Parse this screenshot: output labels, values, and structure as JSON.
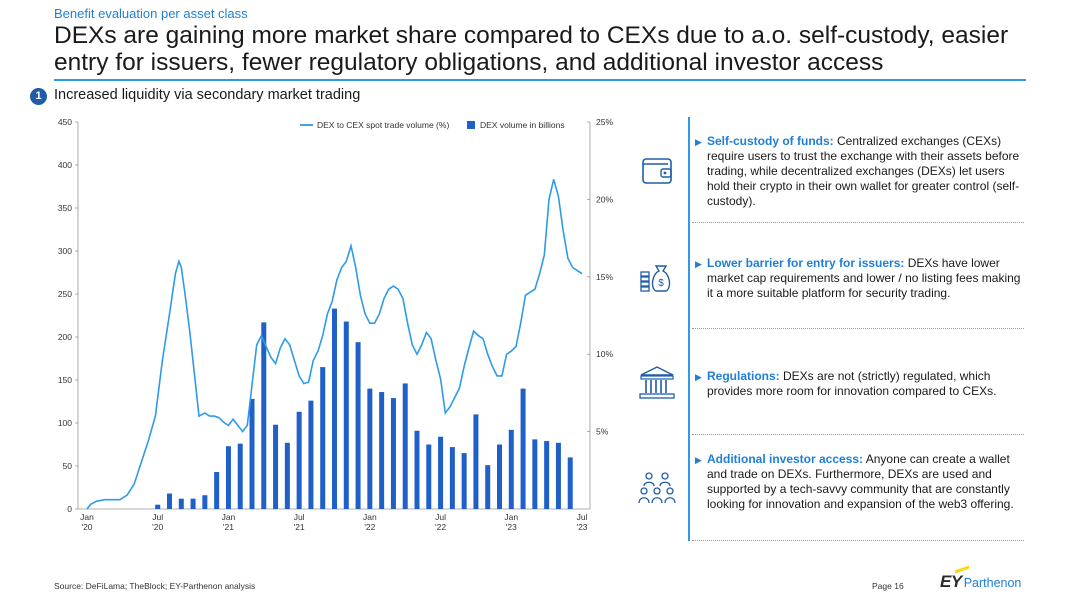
{
  "header": {
    "kicker": "Benefit evaluation per asset class",
    "title": "DEXs are gaining more market share compared to CEXs due to a.o. self-custody, easier entry for issuers, fewer regulatory obligations, and additional investor access",
    "section_number": "1",
    "section_title": "Increased liquidity via secondary market trading"
  },
  "chart_data": {
    "type": "bar",
    "categories": [
      "Jan '20",
      "Feb '20",
      "Mar '20",
      "Apr '20",
      "May '20",
      "Jun '20",
      "Jul '20",
      "Aug '20",
      "Sep '20",
      "Oct '20",
      "Nov '20",
      "Dec '20",
      "Jan '21",
      "Feb '21",
      "Mar '21",
      "Apr '21",
      "May '21",
      "Jun '21",
      "Jul '21",
      "Aug '21",
      "Sep '21",
      "Oct '21",
      "Nov '21",
      "Dec '21",
      "Jan '22",
      "Feb '22",
      "Mar '22",
      "Apr '22",
      "May '22",
      "Jun '22",
      "Jul '22",
      "Aug '22",
      "Sep '22",
      "Oct '22",
      "Nov '22",
      "Dec '22",
      "Jan '23",
      "Feb '23",
      "Mar '23",
      "Apr '23",
      "May '23",
      "Jun '23",
      "Jul '23"
    ],
    "x_tick_labels": [
      {
        "index": 0,
        "line1": "Jan",
        "line2": "'20"
      },
      {
        "index": 6,
        "line1": "Jul",
        "line2": "'20"
      },
      {
        "index": 12,
        "line1": "Jan",
        "line2": "'21"
      },
      {
        "index": 18,
        "line1": "Jul",
        "line2": "'21"
      },
      {
        "index": 24,
        "line1": "Jan",
        "line2": "'22"
      },
      {
        "index": 30,
        "line1": "Jul",
        "line2": "'22"
      },
      {
        "index": 36,
        "line1": "Jan",
        "line2": "'23"
      },
      {
        "index": 42,
        "line1": "Jul",
        "line2": "'23"
      }
    ],
    "series": [
      {
        "name": "DEX volume in billions",
        "type": "bar",
        "axis": "left",
        "color": "#1f5fc8",
        "values": [
          null,
          null,
          null,
          null,
          null,
          null,
          5,
          18,
          12,
          12,
          16,
          43,
          73,
          76,
          128,
          217,
          98,
          77,
          113,
          126,
          165,
          233,
          218,
          194,
          140,
          136,
          129,
          146,
          91,
          75,
          84,
          72,
          65,
          110,
          51,
          75,
          92,
          140,
          81,
          79,
          77,
          60,
          null
        ]
      },
      {
        "name": "DEX to CEX spot trade volume (%)",
        "type": "line",
        "axis": "right",
        "color": "#2d9be8",
        "x": [
          0,
          0.3,
          0.8,
          1.5,
          2.2,
          2.8,
          3.4,
          4.0,
          4.6,
          5.2,
          5.8,
          6.4,
          7.0,
          7.5,
          7.8,
          8.0,
          8.3,
          8.7,
          9.1,
          9.5,
          10.0,
          10.4,
          10.8,
          11.2,
          11.6,
          12.0,
          12.4,
          12.8,
          13.2,
          13.6,
          14.0,
          14.4,
          14.8,
          15.2,
          15.6,
          16.0,
          16.4,
          16.8,
          17.2,
          17.6,
          18.0,
          18.4,
          18.8,
          19.2,
          19.6,
          20.0,
          20.4,
          20.8,
          21.2,
          21.6,
          22.0,
          22.4,
          22.8,
          23.2,
          23.6,
          24.0,
          24.4,
          24.8,
          25.2,
          25.6,
          26.0,
          26.4,
          26.8,
          27.2,
          27.6,
          28.0,
          28.4,
          28.8,
          29.2,
          29.6,
          30.0,
          30.4,
          30.8,
          31.2,
          31.6,
          32.0,
          32.4,
          32.8,
          33.2,
          33.6,
          34.0,
          34.4,
          34.8,
          35.2,
          35.6,
          36.0,
          36.4,
          36.8,
          37.2,
          37.6,
          38.0,
          38.4,
          38.8,
          39.2,
          39.6,
          40.0,
          40.4,
          40.8,
          41.2,
          41.6,
          42.0
        ],
        "values": [
          0,
          0.3,
          0.5,
          0.6,
          0.6,
          0.6,
          0.9,
          1.6,
          3.0,
          4.4,
          6.0,
          9.6,
          12.6,
          15.2,
          16.0,
          15.6,
          14.0,
          11.6,
          8.8,
          6.0,
          6.2,
          6.0,
          6.0,
          5.9,
          5.6,
          5.4,
          5.8,
          5.4,
          5.0,
          5.4,
          8.0,
          10.6,
          11.2,
          10.5,
          9.8,
          9.4,
          10.4,
          11.0,
          10.6,
          9.6,
          8.6,
          8.1,
          8.2,
          9.6,
          10.2,
          11.2,
          12.6,
          13.4,
          14.8,
          15.6,
          16.0,
          17.0,
          15.6,
          13.8,
          12.6,
          12.0,
          12.0,
          12.6,
          13.6,
          14.2,
          14.4,
          14.2,
          13.6,
          12.0,
          10.6,
          10.0,
          10.6,
          11.4,
          11.0,
          9.6,
          8.4,
          6.2,
          6.6,
          7.2,
          7.8,
          9.2,
          10.4,
          11.5,
          11.2,
          11.0,
          10.0,
          9.2,
          8.6,
          8.6,
          10.0,
          10.2,
          10.5,
          12.0,
          13.8,
          14.0,
          14.2,
          15.2,
          16.4,
          20.0,
          21.3,
          20.2,
          18.0,
          16.2,
          15.6,
          15.4,
          15.2
        ]
      }
    ],
    "y_left": {
      "min": 0,
      "max": 450,
      "ticks": [
        0,
        50,
        100,
        150,
        200,
        250,
        300,
        350,
        400,
        450
      ]
    },
    "y_right": {
      "min": 0,
      "max": 25,
      "ticks": [
        5,
        10,
        15,
        20,
        25
      ],
      "tick_labels": [
        "5%",
        "10%",
        "15%",
        "20%",
        "25%"
      ]
    },
    "legend_position": "top-right",
    "grid": false
  },
  "benefits": [
    {
      "icon": "wallet-icon",
      "title": "Self-custody of funds:",
      "text": " Centralized exchanges (CEXs) require users to trust the exchange with their assets before trading, while decentralized exchanges (DEXs) let users hold their crypto in their own wallet for greater control (self-custody)."
    },
    {
      "icon": "money-bag-icon",
      "title": "Lower barrier for entry for issuers:",
      "text": " DEXs have lower market cap requirements and lower / no listing fees making it a more suitable platform for security trading."
    },
    {
      "icon": "bank-building-icon",
      "title": "Regulations:",
      "text": " DEXs are not (strictly) regulated, which provides more room for innovation compared to CEXs."
    },
    {
      "icon": "community-icon",
      "title": "Additional investor access:",
      "text": " Anyone can create a wallet and trade on DEXs. Furthermore, DEXs are used and supported by a tech-savvy community that are constantly looking for innovation and expansion of the web3 offering."
    }
  ],
  "footer": {
    "source": "Source: DeFiLama; TheBlock; EY-Parthenon analysis",
    "page": "Page 16",
    "logo_ey": "EY",
    "logo_parthenon": "Parthenon"
  },
  "colors": {
    "accent": "#2d9be8",
    "bar": "#1f5fc8",
    "dark_blue": "#1f5da8"
  }
}
